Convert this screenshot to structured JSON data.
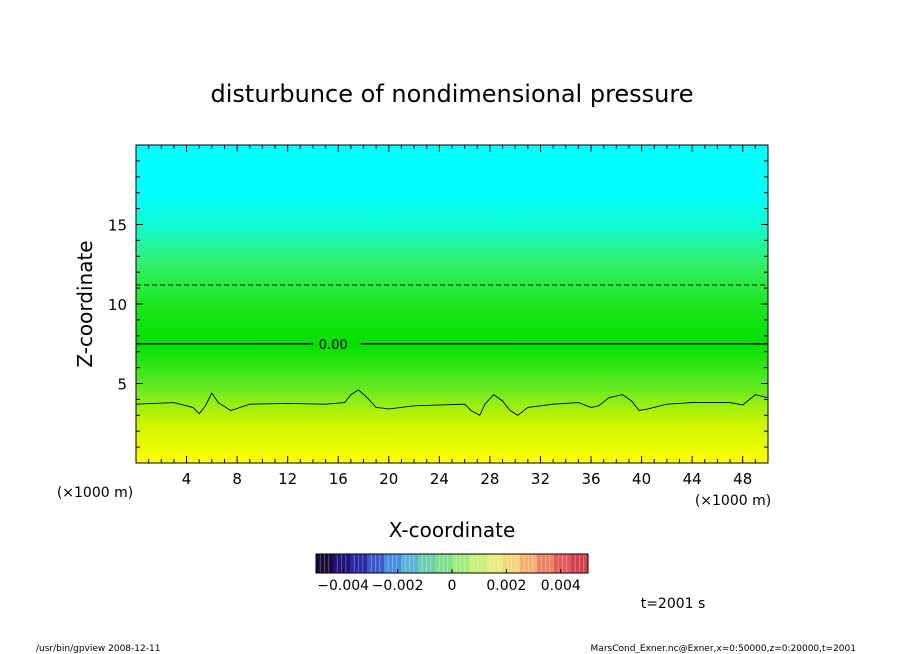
{
  "chart_data": {
    "type": "heatmap",
    "title": "disturbunce of nondimensional pressure",
    "xlabel": "X-coordinate",
    "ylabel": "Z-coordinate",
    "x_unit_left": "(×1000 m)",
    "x_unit_right": "(×1000 m)",
    "xlim": [
      0,
      50
    ],
    "ylim": [
      0,
      20
    ],
    "x_ticks": [
      4,
      8,
      12,
      16,
      20,
      24,
      28,
      32,
      36,
      40,
      44,
      48
    ],
    "x_tick_labels": [
      "4",
      "8",
      "12",
      "16",
      "20",
      "24",
      "28",
      "32",
      "36",
      "40",
      "44",
      "48"
    ],
    "y_ticks": [
      5,
      10,
      15
    ],
    "y_tick_labels": [
      "5",
      "10",
      "15"
    ],
    "field_colors_by_z": [
      {
        "z": 0.0,
        "color": "#ffff00"
      },
      {
        "z": 2.5,
        "color": "#cdf500"
      },
      {
        "z": 5.0,
        "color": "#5ae824"
      },
      {
        "z": 7.5,
        "color": "#00e000"
      },
      {
        "z": 10.0,
        "color": "#1ee61e"
      },
      {
        "z": 12.5,
        "color": "#32f06a"
      },
      {
        "z": 15.0,
        "color": "#10fbd4"
      },
      {
        "z": 17.0,
        "color": "#00ffff"
      },
      {
        "z": 20.0,
        "color": "#00ffff"
      }
    ],
    "contours": [
      {
        "level": "0.00",
        "z": 7.5,
        "style": "solid",
        "label": "0.00",
        "label_x": 14.3
      },
      {
        "level": "negative",
        "z": 11.2,
        "style": "dashed"
      },
      {
        "level": "positive",
        "style": "thin",
        "points": [
          [
            0,
            3.7
          ],
          [
            3,
            3.8
          ],
          [
            4.5,
            3.5
          ],
          [
            5,
            3.1
          ],
          [
            5.5,
            3.6
          ],
          [
            6,
            4.4
          ],
          [
            6.5,
            3.8
          ],
          [
            7.5,
            3.3
          ],
          [
            9,
            3.7
          ],
          [
            12,
            3.75
          ],
          [
            15,
            3.7
          ],
          [
            16.5,
            3.8
          ],
          [
            17,
            4.3
          ],
          [
            17.6,
            4.6
          ],
          [
            18.3,
            4.1
          ],
          [
            19,
            3.5
          ],
          [
            20,
            3.4
          ],
          [
            22,
            3.6
          ],
          [
            26,
            3.7
          ],
          [
            26.5,
            3.3
          ],
          [
            27.2,
            3.0
          ],
          [
            27.6,
            3.7
          ],
          [
            28.3,
            4.3
          ],
          [
            29,
            3.9
          ],
          [
            29.6,
            3.3
          ],
          [
            30.2,
            3.0
          ],
          [
            31,
            3.5
          ],
          [
            33,
            3.7
          ],
          [
            35,
            3.8
          ],
          [
            36,
            3.5
          ],
          [
            36.6,
            3.6
          ],
          [
            37.4,
            4.1
          ],
          [
            38.5,
            4.3
          ],
          [
            39.2,
            3.9
          ],
          [
            39.8,
            3.3
          ],
          [
            40.5,
            3.4
          ],
          [
            42,
            3.7
          ],
          [
            44,
            3.8
          ],
          [
            47,
            3.8
          ],
          [
            48,
            3.65
          ],
          [
            49,
            4.3
          ],
          [
            50,
            4.1
          ]
        ]
      }
    ],
    "colorbar": {
      "range": [
        -0.005,
        0.005
      ],
      "tick_labels": [
        "−0.004",
        "−0.002",
        "0",
        "0.002",
        "0.004"
      ],
      "tick_values": [
        -0.004,
        -0.002,
        0,
        0.002,
        0.004
      ],
      "colors": [
        "#1a0a3a",
        "#22127c",
        "#2a2aa8",
        "#3a5ac8",
        "#4a8ee0",
        "#5ab4d8",
        "#6ad0b0",
        "#7ee08a",
        "#a0ec7a",
        "#c8f07a",
        "#e8ec7c",
        "#f2d878",
        "#f4b070",
        "#ee8466",
        "#e45c5a",
        "#d24450"
      ]
    },
    "annotation_time": "t=2001 s",
    "footer_left": "/usr/bin/gpview   2008-12-11",
    "footer_right": "MarsCond_Exner.nc@Exner,x=0:50000,z=0:20000,t=2001"
  }
}
